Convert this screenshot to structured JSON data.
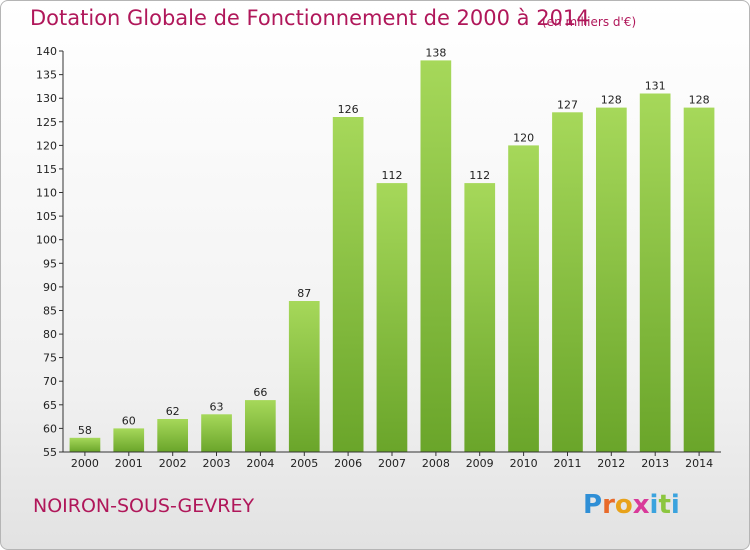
{
  "header": {
    "title": "Dotation Globale de Fonctionnement de 2000 à 2014",
    "unit": "(en milliers d'€)"
  },
  "footer": {
    "city": "NOIRON-SOUS-GEVREY",
    "logo": "Proxiti"
  },
  "colors": {
    "title": "#b0175a",
    "bar_top": "#a6d85a",
    "bar_bottom": "#6aa52a",
    "axis": "#333333"
  },
  "chart_data": {
    "type": "bar",
    "title": "Dotation Globale de Fonctionnement de 2000 à 2014",
    "subtitle": "(en milliers d'€)",
    "categories": [
      "2000",
      "2001",
      "2002",
      "2003",
      "2004",
      "2005",
      "2006",
      "2007",
      "2008",
      "2009",
      "2010",
      "2011",
      "2012",
      "2013",
      "2014"
    ],
    "values": [
      58,
      60,
      62,
      63,
      66,
      87,
      126,
      112,
      138,
      112,
      120,
      127,
      128,
      131,
      128
    ],
    "ylim": [
      55,
      140
    ],
    "yticks": [
      55,
      60,
      65,
      70,
      75,
      80,
      85,
      90,
      95,
      100,
      105,
      110,
      115,
      120,
      125,
      130,
      135,
      140
    ],
    "grid": false,
    "legend": "none"
  }
}
